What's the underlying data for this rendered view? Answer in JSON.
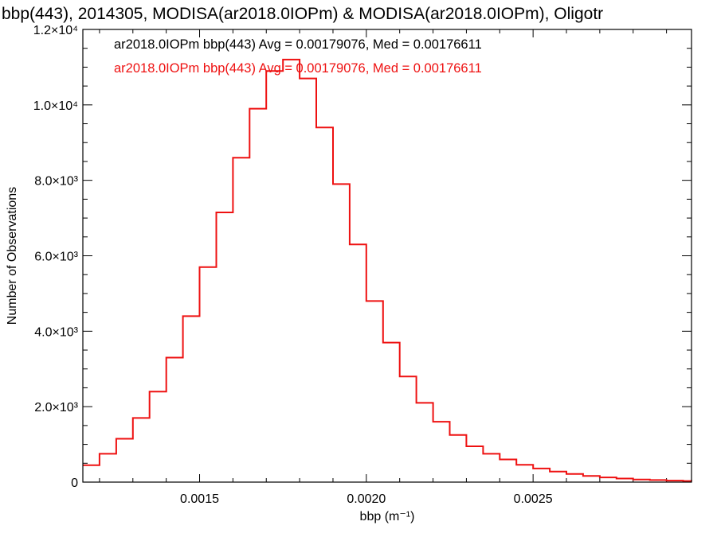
{
  "chart_data": {
    "type": "line",
    "step": true,
    "title": "bbp(443), 2014305, MODISA(ar2018.0IOPm) & MODISA(ar2018.0IOPm), Oligotr",
    "xlabel": "bbp (m⁻¹)",
    "ylabel": "Number of Observations",
    "xlim": [
      0.00115,
      0.002975
    ],
    "ylim": [
      0,
      12000
    ],
    "x_ticks": [
      {
        "value": 0.0015,
        "label": "0.0015"
      },
      {
        "value": 0.002,
        "label": "0.0020"
      },
      {
        "value": 0.0025,
        "label": "0.0025"
      }
    ],
    "y_ticks": [
      {
        "value": 0,
        "label": "0"
      },
      {
        "value": 2000,
        "label": "2.0×10³"
      },
      {
        "value": 4000,
        "label": "4.0×10³"
      },
      {
        "value": 6000,
        "label": "6.0×10³"
      },
      {
        "value": 8000,
        "label": "8.0×10³"
      },
      {
        "value": 10000,
        "label": "1.0×10⁴"
      },
      {
        "value": 12000,
        "label": "1.2×10⁴"
      }
    ],
    "legend": [
      {
        "text": "ar2018.0IOPm bbp(443) Avg = 0.00179076, Med = 0.00176611",
        "color": "#000000"
      },
      {
        "text": "ar2018.0IOPm bbp(443) Avg = 0.00179076, Med = 0.00176611",
        "color": "#ee1111"
      }
    ],
    "series": [
      {
        "color": "#ee1111",
        "x": [
          0.00115,
          0.0012,
          0.00125,
          0.0013,
          0.00135,
          0.0014,
          0.00145,
          0.0015,
          0.00155,
          0.0016,
          0.00165,
          0.0017,
          0.00175,
          0.0018,
          0.00185,
          0.0019,
          0.00195,
          0.002,
          0.00205,
          0.0021,
          0.00215,
          0.0022,
          0.00225,
          0.0023,
          0.00235,
          0.0024,
          0.00245,
          0.0025,
          0.00255,
          0.0026,
          0.00265,
          0.0027,
          0.00275,
          0.0028,
          0.00285,
          0.0029,
          0.00295,
          0.002975
        ],
        "y": [
          450,
          750,
          1150,
          1700,
          2400,
          3300,
          4400,
          5700,
          7150,
          8600,
          9900,
          10900,
          11200,
          10700,
          9400,
          7900,
          6300,
          4800,
          3700,
          2800,
          2100,
          1600,
          1250,
          950,
          750,
          600,
          460,
          360,
          280,
          215,
          165,
          125,
          95,
          70,
          55,
          40,
          30,
          25
        ]
      }
    ]
  }
}
